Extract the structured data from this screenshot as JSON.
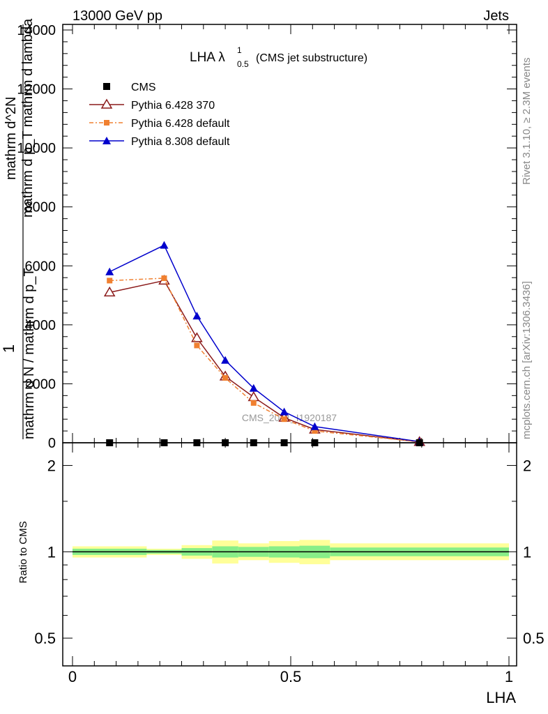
{
  "header": {
    "left": "13000 GeV pp",
    "right": "Jets"
  },
  "side_text": {
    "rivet": "Rivet 3.1.10, ≥ 2.3M events",
    "mcplots": "mcplots.cern.ch [arXiv:1306.3436]"
  },
  "watermark": "CMS_2021_I1920187",
  "colors": {
    "cms": "#000000",
    "pythia6_370": "#8b1a1a",
    "pythia6_default": "#f08030",
    "pythia8": "#0000cc",
    "band_inner": "#88ee88",
    "band_outer": "#ffff99"
  },
  "chart_data": [
    {
      "type": "line",
      "title_main": "LHA λ",
      "title_sup": "1",
      "title_sub": "0.5",
      "title_rest": "(CMS jet substructure)",
      "ylabel_num": "1",
      "ylabel_den": "mathrm d N / mathrm d p_T",
      "ylabel_frac_num": "mathrm d^2N",
      "ylabel_frac_den": "mathrm d p_T mathrm d lambda",
      "xlim": [
        0,
        1
      ],
      "ylim": [
        0,
        14000
      ],
      "yticks": [
        0,
        2000,
        4000,
        6000,
        8000,
        10000,
        12000,
        14000
      ],
      "ytick_labels": [
        "0",
        "2000",
        "4000",
        "6000",
        "8000",
        "10000",
        "12000",
        "14000"
      ],
      "series": [
        {
          "name": "CMS",
          "marker": "square",
          "x": [
            0.085,
            0.21,
            0.285,
            0.35,
            0.415,
            0.485,
            0.555,
            0.795
          ],
          "y": [
            0,
            0,
            0,
            0,
            0,
            0,
            0,
            0
          ]
        },
        {
          "name": "Pythia 6.428 370",
          "marker": "open-triangle",
          "x": [
            0.085,
            0.21,
            0.285,
            0.35,
            0.415,
            0.485,
            0.555,
            0.795
          ],
          "y": [
            5100,
            5500,
            3550,
            2250,
            1550,
            850,
            450,
            30
          ]
        },
        {
          "name": "Pythia 6.428 default",
          "marker": "square-small",
          "x": [
            0.085,
            0.21,
            0.285,
            0.35,
            0.415,
            0.485,
            0.555,
            0.795
          ],
          "y": [
            5500,
            5580,
            3300,
            2200,
            1350,
            800,
            400,
            30
          ]
        },
        {
          "name": "Pythia 8.308 default",
          "marker": "filled-triangle",
          "x": [
            0.085,
            0.21,
            0.285,
            0.35,
            0.415,
            0.485,
            0.555,
            0.795
          ],
          "y": [
            5800,
            6700,
            4300,
            2800,
            1850,
            1050,
            550,
            40
          ]
        }
      ]
    },
    {
      "type": "area",
      "ylabel": "Ratio to CMS",
      "xlabel": "LHA",
      "xlim": [
        0,
        1
      ],
      "ylim": [
        0.4,
        2.4
      ],
      "log_y": true,
      "yticks": [
        0.5,
        1,
        2
      ],
      "ytick_labels": [
        "0.5",
        "1",
        "2"
      ],
      "xticks": [
        0,
        0.5,
        1
      ],
      "xtick_labels": [
        "0",
        "0.5",
        "1"
      ],
      "bins": [
        {
          "lo": 0.0,
          "hi": 0.17,
          "inner": [
            0.975,
            1.025
          ],
          "outer": [
            0.955,
            1.045
          ]
        },
        {
          "lo": 0.17,
          "hi": 0.25,
          "inner": [
            0.985,
            1.015
          ],
          "outer": [
            0.975,
            1.025
          ]
        },
        {
          "lo": 0.25,
          "hi": 0.32,
          "inner": [
            0.97,
            1.03
          ],
          "outer": [
            0.945,
            1.055
          ]
        },
        {
          "lo": 0.32,
          "hi": 0.38,
          "inner": [
            0.955,
            1.045
          ],
          "outer": [
            0.91,
            1.095
          ]
        },
        {
          "lo": 0.38,
          "hi": 0.45,
          "inner": [
            0.96,
            1.04
          ],
          "outer": [
            0.935,
            1.07
          ]
        },
        {
          "lo": 0.45,
          "hi": 0.52,
          "inner": [
            0.955,
            1.045
          ],
          "outer": [
            0.915,
            1.09
          ]
        },
        {
          "lo": 0.52,
          "hi": 0.59,
          "inner": [
            0.95,
            1.05
          ],
          "outer": [
            0.905,
            1.1
          ]
        },
        {
          "lo": 0.59,
          "hi": 1.0,
          "inner": [
            0.965,
            1.035
          ],
          "outer": [
            0.935,
            1.07
          ]
        }
      ]
    }
  ]
}
